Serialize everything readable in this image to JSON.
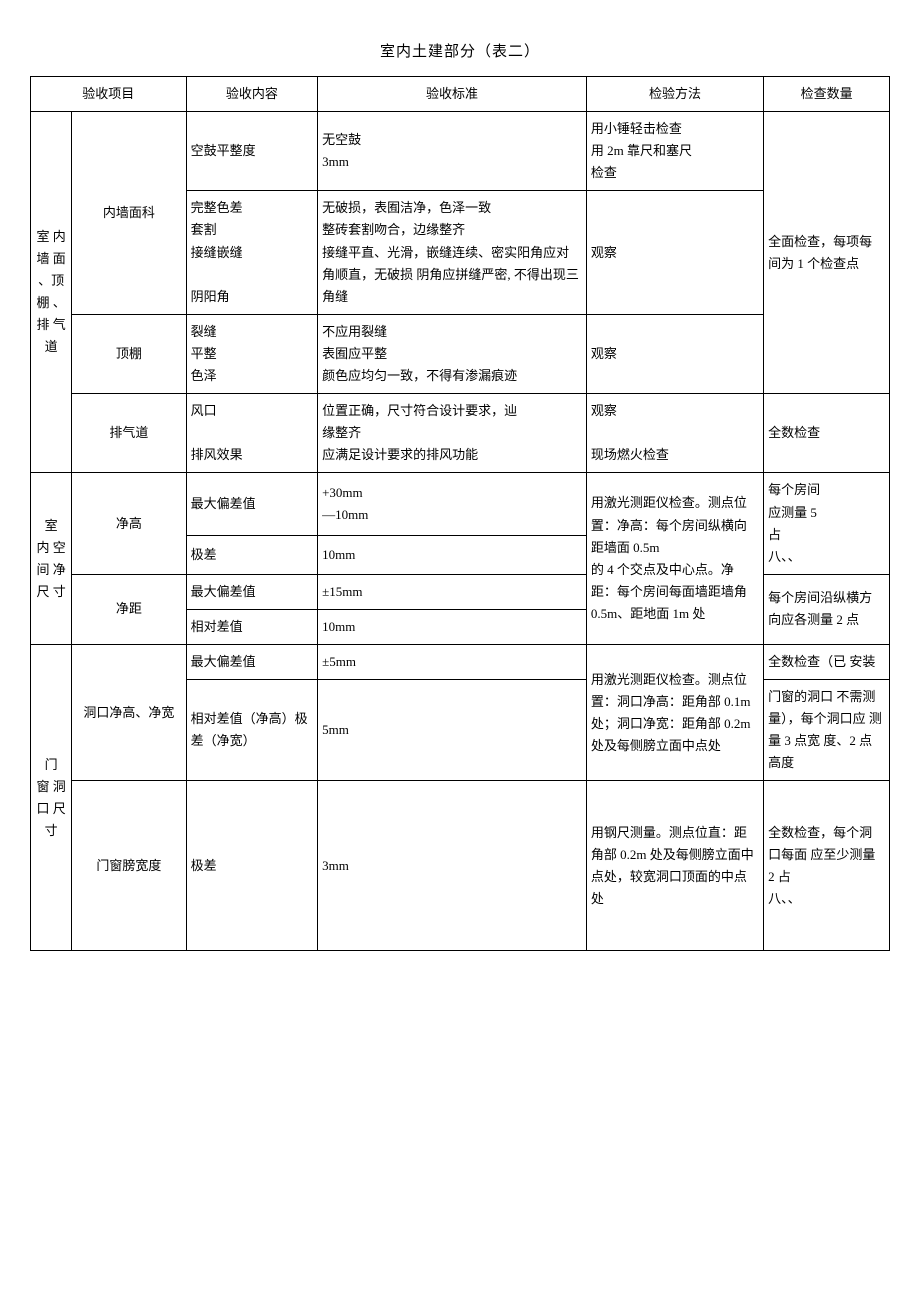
{
  "title": "室内土建部分（表二）",
  "headers": {
    "c1": "验收项目",
    "c3": "验收内容",
    "c4": "验收标准",
    "c5": "检验方法",
    "c6": "检查数量"
  },
  "g1": {
    "label": "室 内 墙 面 、顶 棚 、 排 气 道",
    "r1": {
      "sub": "内墙面科",
      "content1": "空鼓平整度",
      "std1": "无空鼓\n3mm",
      "method1": "用小锤轻击检查\n用 2m 靠尺和塞尺\n检查",
      "content2": "完整色差\n套割\n接缝嵌缝\n\n阴阳角",
      "std2": "无破损，表囿洁净，色泽一致\n整砖套割吻合，边缘整齐\n接缝平直、光滑，嵌缝连续、密实阳角应对角顺直，无破损 阴角应拼缝严密, 不得出现三角缝",
      "method2": "观察",
      "qty": "全面检查，每项每间为 1 个检查点"
    },
    "r2": {
      "sub": "顶棚",
      "content": "裂缝\n平整\n色泽",
      "std": "不应用裂缝\n表囿应平整\n颜色应均匀一致，不得有渗漏痕迹",
      "method": "观察"
    },
    "r3": {
      "sub": "排气道",
      "content": "风口\n\n排风效果",
      "std": "位置正确，尺寸符合设计要求，辿\n缘整齐\n应满足设计要求的排风功能",
      "method": "观察\n\n现场燃火检查",
      "qty": "全数检查"
    }
  },
  "g2": {
    "label": " 室\n内 空\n间 净\n尺 寸",
    "r1": {
      "sub": "净高",
      "content1": "最大偏差值",
      "std1": "+30mm\n—10mm",
      "content2": "极差",
      "std2": "10mm",
      "qty": "每个房间\n应测量 5\n占\n八、、",
      "method": "用激光测距仪检查。测点位置：净高：每个房间纵横向距墙面 0.5m\n的 4 个交点及中心点。净距：每个房间每面墙距墙角 0.5m、距地面 1m 处"
    },
    "r2": {
      "sub": "净距",
      "content1": "最大偏差值",
      "std1": "±15mm",
      "content2": "相对差值",
      "std2": "10mm",
      "qty": "每个房间沿纵横方向应各测量 2 点"
    }
  },
  "g3": {
    "label": " 门\n窗 洞\n口 尺\n 寸",
    "r1": {
      "sub": "洞口净高、净宽",
      "content1": "最大偏差值",
      "std1": "±5mm",
      "content2": "相对差值（净高）极差（净宽）",
      "std2": "5mm",
      "method": "用激光测距仪检查。测点位置：洞口净高：距角部 0.1m 处；洞口净宽：距角部 0.2m 处及每侧膀立面中点处",
      "qty1": "全数检查（已 安装",
      "qty2": "门窗的洞口 不需测量），每个洞口应 测量 3 点宽 度、2 点高度"
    },
    "r2": {
      "sub": "门窗膀宽度",
      "content": "极差",
      "std": "3mm",
      "method": "用钢尺测量。测点位直：距角部 0.2m 处及每侧膀立面中点处，较宽洞口顶面的中点处",
      "qty": "全数检查，每个洞口每面 应至少测量\n2 占\n八、、"
    }
  }
}
